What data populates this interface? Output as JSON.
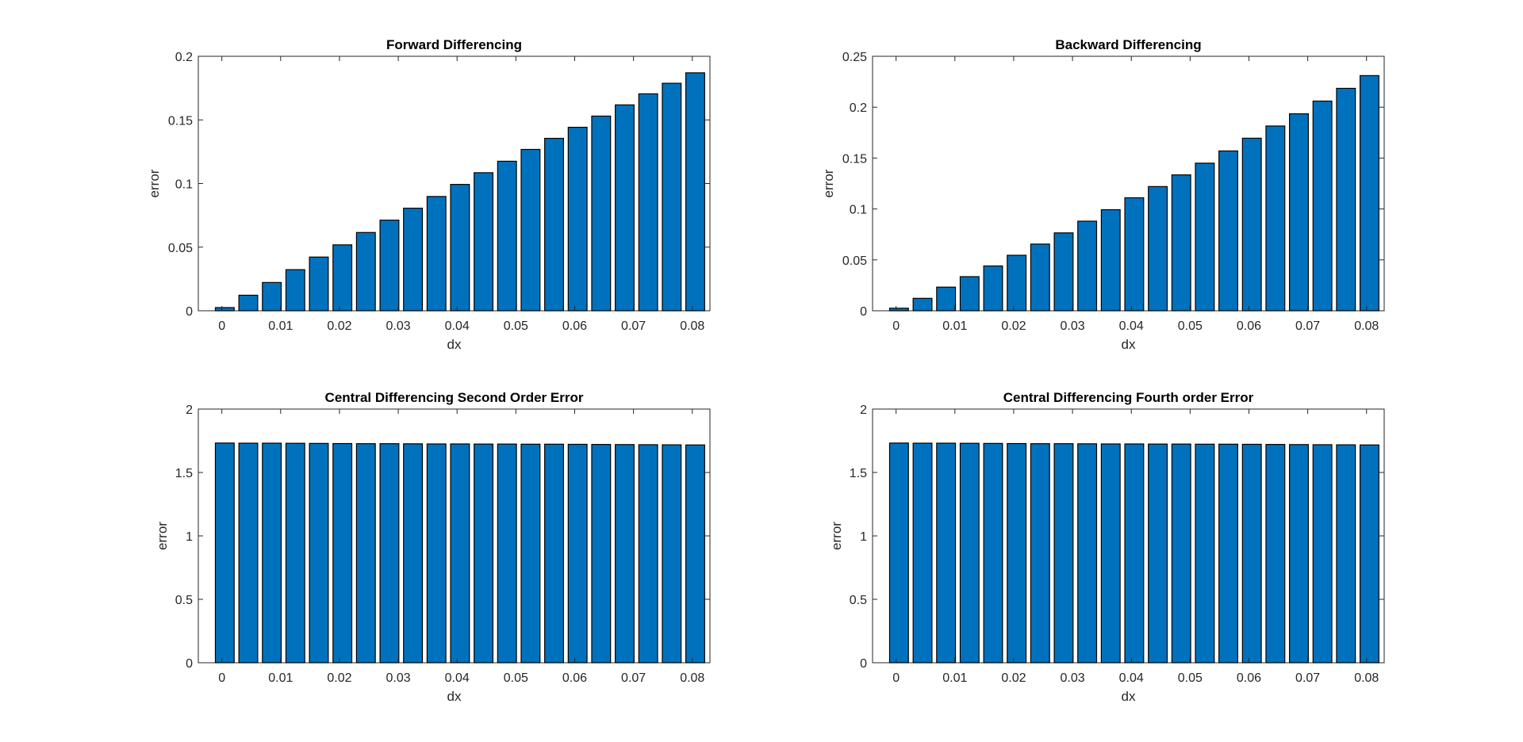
{
  "colors": {
    "bar_fill": "#0072BD",
    "bar_edge": "#000000",
    "axes": "#262626",
    "background": "#FFFFFF"
  },
  "chart_data": [
    {
      "type": "bar",
      "title": "Forward Differencing",
      "xlabel": "dx",
      "ylabel": "error",
      "x": [
        0.0005,
        0.0045,
        0.0085,
        0.0125,
        0.0165,
        0.0205,
        0.0245,
        0.0285,
        0.0325,
        0.0365,
        0.0405,
        0.0445,
        0.0485,
        0.0525,
        0.0565,
        0.0605,
        0.0645,
        0.0685,
        0.0725,
        0.0765,
        0.0805
      ],
      "values": [
        0.0025,
        0.0122,
        0.0222,
        0.0323,
        0.0422,
        0.0518,
        0.0615,
        0.0712,
        0.0806,
        0.0898,
        0.0993,
        0.1085,
        0.1175,
        0.1268,
        0.1355,
        0.1442,
        0.153,
        0.1618,
        0.1705,
        0.1788,
        0.187
      ],
      "xticks": [
        "0",
        "0.01",
        "0.02",
        "0.03",
        "0.04",
        "0.05",
        "0.06",
        "0.07",
        "0.08"
      ],
      "yticks": [
        "0",
        "0.05",
        "0.1",
        "0.15",
        "0.2"
      ],
      "xlim": [
        -0.004,
        0.083
      ],
      "ylim": [
        0,
        0.2
      ],
      "grid": false,
      "legend": "none"
    },
    {
      "type": "bar",
      "title": "Backward Differencing",
      "xlabel": "dx",
      "ylabel": "error",
      "x": [
        0.0005,
        0.0045,
        0.0085,
        0.0125,
        0.0165,
        0.0205,
        0.0245,
        0.0285,
        0.0325,
        0.0365,
        0.0405,
        0.0445,
        0.0485,
        0.0525,
        0.0565,
        0.0605,
        0.0645,
        0.0685,
        0.0725,
        0.0765,
        0.0805
      ],
      "values": [
        0.0025,
        0.0122,
        0.0232,
        0.0335,
        0.044,
        0.0545,
        0.0655,
        0.0765,
        0.088,
        0.0993,
        0.111,
        0.122,
        0.1335,
        0.145,
        0.157,
        0.1695,
        0.1815,
        0.1935,
        0.206,
        0.2185,
        0.231
      ],
      "xticks": [
        "0",
        "0.01",
        "0.02",
        "0.03",
        "0.04",
        "0.05",
        "0.06",
        "0.07",
        "0.08"
      ],
      "yticks": [
        "0",
        "0.05",
        "0.1",
        "0.15",
        "0.2",
        "0.25"
      ],
      "xlim": [
        -0.004,
        0.083
      ],
      "ylim": [
        0,
        0.25
      ],
      "grid": false,
      "legend": "none"
    },
    {
      "type": "bar",
      "title": "Central Differencing Second Order Error",
      "xlabel": "dx",
      "ylabel": "error",
      "x": [
        0.0005,
        0.0045,
        0.0085,
        0.0125,
        0.0165,
        0.0205,
        0.0245,
        0.0285,
        0.0325,
        0.0365,
        0.0405,
        0.0445,
        0.0485,
        0.0525,
        0.0565,
        0.0605,
        0.0645,
        0.0685,
        0.0725,
        0.0765,
        0.0805
      ],
      "values": [
        1.732,
        1.731,
        1.731,
        1.73,
        1.729,
        1.728,
        1.727,
        1.727,
        1.726,
        1.725,
        1.725,
        1.724,
        1.724,
        1.723,
        1.723,
        1.722,
        1.721,
        1.72,
        1.719,
        1.718,
        1.717
      ],
      "xticks": [
        "0",
        "0.01",
        "0.02",
        "0.03",
        "0.04",
        "0.05",
        "0.06",
        "0.07",
        "0.08"
      ],
      "yticks": [
        "0",
        "0.5",
        "1",
        "1.5",
        "2"
      ],
      "xlim": [
        -0.004,
        0.083
      ],
      "ylim": [
        0,
        2
      ],
      "grid": false,
      "legend": "none"
    },
    {
      "type": "bar",
      "title": "Central Differencing Fourth order Error",
      "xlabel": "dx",
      "ylabel": "error",
      "x": [
        0.0005,
        0.0045,
        0.0085,
        0.0125,
        0.0165,
        0.0205,
        0.0245,
        0.0285,
        0.0325,
        0.0365,
        0.0405,
        0.0445,
        0.0485,
        0.0525,
        0.0565,
        0.0605,
        0.0645,
        0.0685,
        0.0725,
        0.0765,
        0.0805
      ],
      "values": [
        1.732,
        1.731,
        1.731,
        1.73,
        1.729,
        1.728,
        1.727,
        1.727,
        1.726,
        1.725,
        1.725,
        1.724,
        1.724,
        1.723,
        1.723,
        1.722,
        1.721,
        1.72,
        1.719,
        1.718,
        1.717
      ],
      "xticks": [
        "0",
        "0.01",
        "0.02",
        "0.03",
        "0.04",
        "0.05",
        "0.06",
        "0.07",
        "0.08"
      ],
      "yticks": [
        "0",
        "0.5",
        "1",
        "1.5",
        "2"
      ],
      "xlim": [
        -0.004,
        0.083
      ],
      "ylim": [
        0,
        2
      ],
      "grid": false,
      "legend": "none"
    }
  ]
}
